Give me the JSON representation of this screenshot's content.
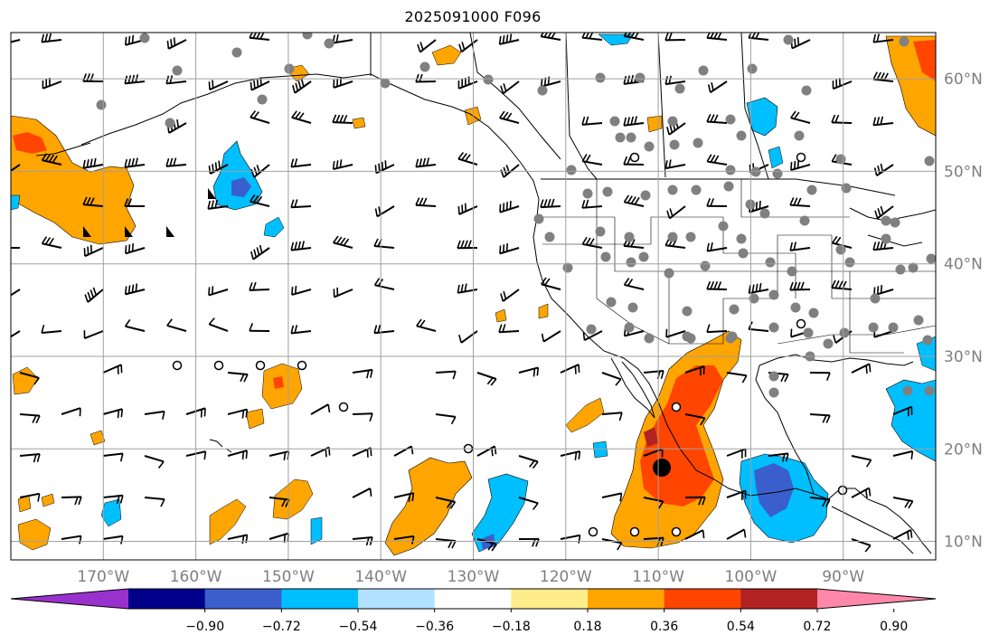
{
  "title": "2025091000 F096",
  "map": {
    "lon_range": [
      -180,
      -80
    ],
    "lat_range": [
      8,
      65
    ],
    "grid": true,
    "lon_labels": [
      "170°W",
      "160°W",
      "150°W",
      "140°W",
      "130°W",
      "120°W",
      "110°W",
      "100°W",
      "90°W"
    ],
    "lat_labels": [
      "60°N",
      "50°N",
      "40°N",
      "30°N",
      "20°N",
      "10°N"
    ]
  },
  "colorbar": {
    "orientation": "horizontal",
    "ticks": [
      "−0.90",
      "−0.72",
      "−0.54",
      "−0.36",
      "−0.18",
      "0.18",
      "0.36",
      "0.54",
      "0.72",
      "0.90"
    ],
    "colors": [
      "#9932cc",
      "#00008b",
      "#3a5fcd",
      "#00bfff",
      "#b0e2ff",
      "#ffffff",
      "#ffec8b",
      "#ffa500",
      "#ff4500",
      "#b22222",
      "#ff88aa"
    ]
  },
  "storm_marker_icon": "filled-circle-storm-center"
}
